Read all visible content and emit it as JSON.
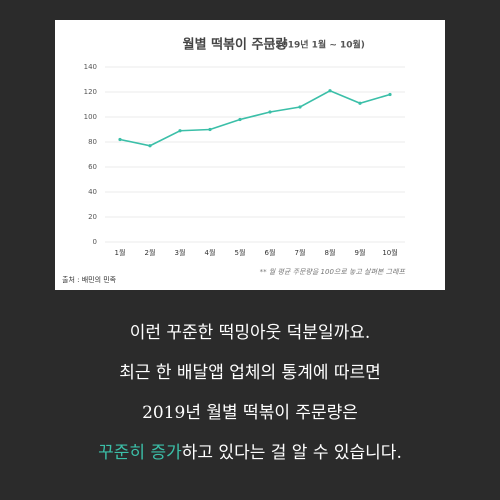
{
  "chart_data": {
    "type": "line",
    "title": "월별 떡볶이 주문량",
    "subtitle": "(2019년 1월 ~ 10월)",
    "categories": [
      "1월",
      "2월",
      "3월",
      "4월",
      "5월",
      "6월",
      "7월",
      "8월",
      "9월",
      "10월"
    ],
    "values": [
      82,
      77,
      89,
      90,
      98,
      104,
      108,
      121,
      111,
      118
    ],
    "color": "#3bbfa8",
    "ylim": [
      0,
      140
    ],
    "yticks": [
      0,
      20,
      40,
      60,
      80,
      100,
      120,
      140
    ],
    "grid": true,
    "source": "출처 : 배민의 민족",
    "note": "** 월 평균 주문량을 100으로 놓고 살펴본 그래프"
  },
  "caption": {
    "lines": [
      "이런 꾸준한 떡밍아웃 덕분일까요.",
      "최근 한 배달앱 업체의 통계에 따르면",
      "2019년 월별 떡볶이 주문량은"
    ],
    "highlight": "꾸준히 증가",
    "rest": "하고 있다는 걸 알 수 있습니다."
  }
}
